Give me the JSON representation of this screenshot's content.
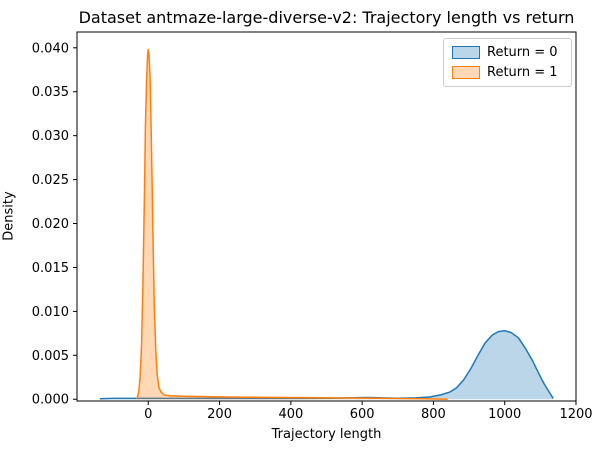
{
  "chart_data": {
    "type": "area",
    "title": "Dataset antmaze-large-diverse-v2: Trajectory length vs return",
    "xlabel": "Trajectory length",
    "ylabel": "Density",
    "xlim": [
      -200,
      1200
    ],
    "ylim": [
      -0.0002,
      0.0418
    ],
    "x_ticks": [
      0,
      200,
      400,
      600,
      800,
      1000,
      1200
    ],
    "y_ticks": [
      0.0,
      0.005,
      0.01,
      0.015,
      0.02,
      0.025,
      0.03,
      0.035,
      0.04
    ],
    "y_tick_decimals": 3,
    "grid": false,
    "legend_position": "upper right",
    "legend": {
      "entries": [
        {
          "label": "Return = 0",
          "color": "#1f77b4"
        },
        {
          "label": "Return = 1",
          "color": "#ff7f0e"
        }
      ]
    },
    "series": [
      {
        "name": "Return = 0",
        "color": "#1f77b4",
        "fill_alpha": 0.3,
        "peak": {
          "x": 1000,
          "density": 0.0078
        },
        "points": [
          [
            -136,
            5e-05
          ],
          [
            -100,
            0.0001
          ],
          [
            0,
            0.0001
          ],
          [
            200,
            0.0001
          ],
          [
            400,
            0.0001
          ],
          [
            500,
            0.00012
          ],
          [
            560,
            0.00015
          ],
          [
            610,
            0.0002
          ],
          [
            650,
            0.00016
          ],
          [
            700,
            0.00012
          ],
          [
            750,
            0.00015
          ],
          [
            790,
            0.00025
          ],
          [
            820,
            0.0005
          ],
          [
            845,
            0.0008
          ],
          [
            865,
            0.0013
          ],
          [
            885,
            0.0022
          ],
          [
            905,
            0.0035
          ],
          [
            925,
            0.005
          ],
          [
            945,
            0.0064
          ],
          [
            965,
            0.0073
          ],
          [
            982,
            0.0077
          ],
          [
            1000,
            0.0078
          ],
          [
            1018,
            0.0076
          ],
          [
            1038,
            0.007
          ],
          [
            1058,
            0.0058
          ],
          [
            1078,
            0.0044
          ],
          [
            1096,
            0.0029
          ],
          [
            1110,
            0.0018
          ],
          [
            1122,
            0.001
          ],
          [
            1130,
            0.0005
          ],
          [
            1136,
            0.0001
          ]
        ]
      },
      {
        "name": "Return = 1",
        "color": "#ff7f0e",
        "fill_alpha": 0.3,
        "peak": {
          "x": 0,
          "density": 0.0398
        },
        "points": [
          [
            -32,
            0
          ],
          [
            -27,
            0.0008
          ],
          [
            -23,
            0.0025
          ],
          [
            -19,
            0.006
          ],
          [
            -15,
            0.013
          ],
          [
            -11,
            0.023
          ],
          [
            -8,
            0.031
          ],
          [
            -5,
            0.036
          ],
          [
            -2,
            0.0392
          ],
          [
            0,
            0.0398
          ],
          [
            2,
            0.0393
          ],
          [
            5,
            0.0365
          ],
          [
            8,
            0.031
          ],
          [
            11,
            0.024
          ],
          [
            14,
            0.0165
          ],
          [
            17,
            0.0105
          ],
          [
            21,
            0.0055
          ],
          [
            25,
            0.0028
          ],
          [
            30,
            0.0013
          ],
          [
            36,
            0.0008
          ],
          [
            45,
            0.0005
          ],
          [
            60,
            0.0004
          ],
          [
            100,
            0.00033
          ],
          [
            180,
            0.00028
          ],
          [
            280,
            0.00023
          ],
          [
            380,
            0.0002
          ],
          [
            480,
            0.00017
          ],
          [
            580,
            0.00014
          ],
          [
            680,
            0.0001
          ],
          [
            760,
            6e-05
          ],
          [
            810,
            3e-05
          ],
          [
            840,
            0
          ]
        ]
      }
    ]
  }
}
